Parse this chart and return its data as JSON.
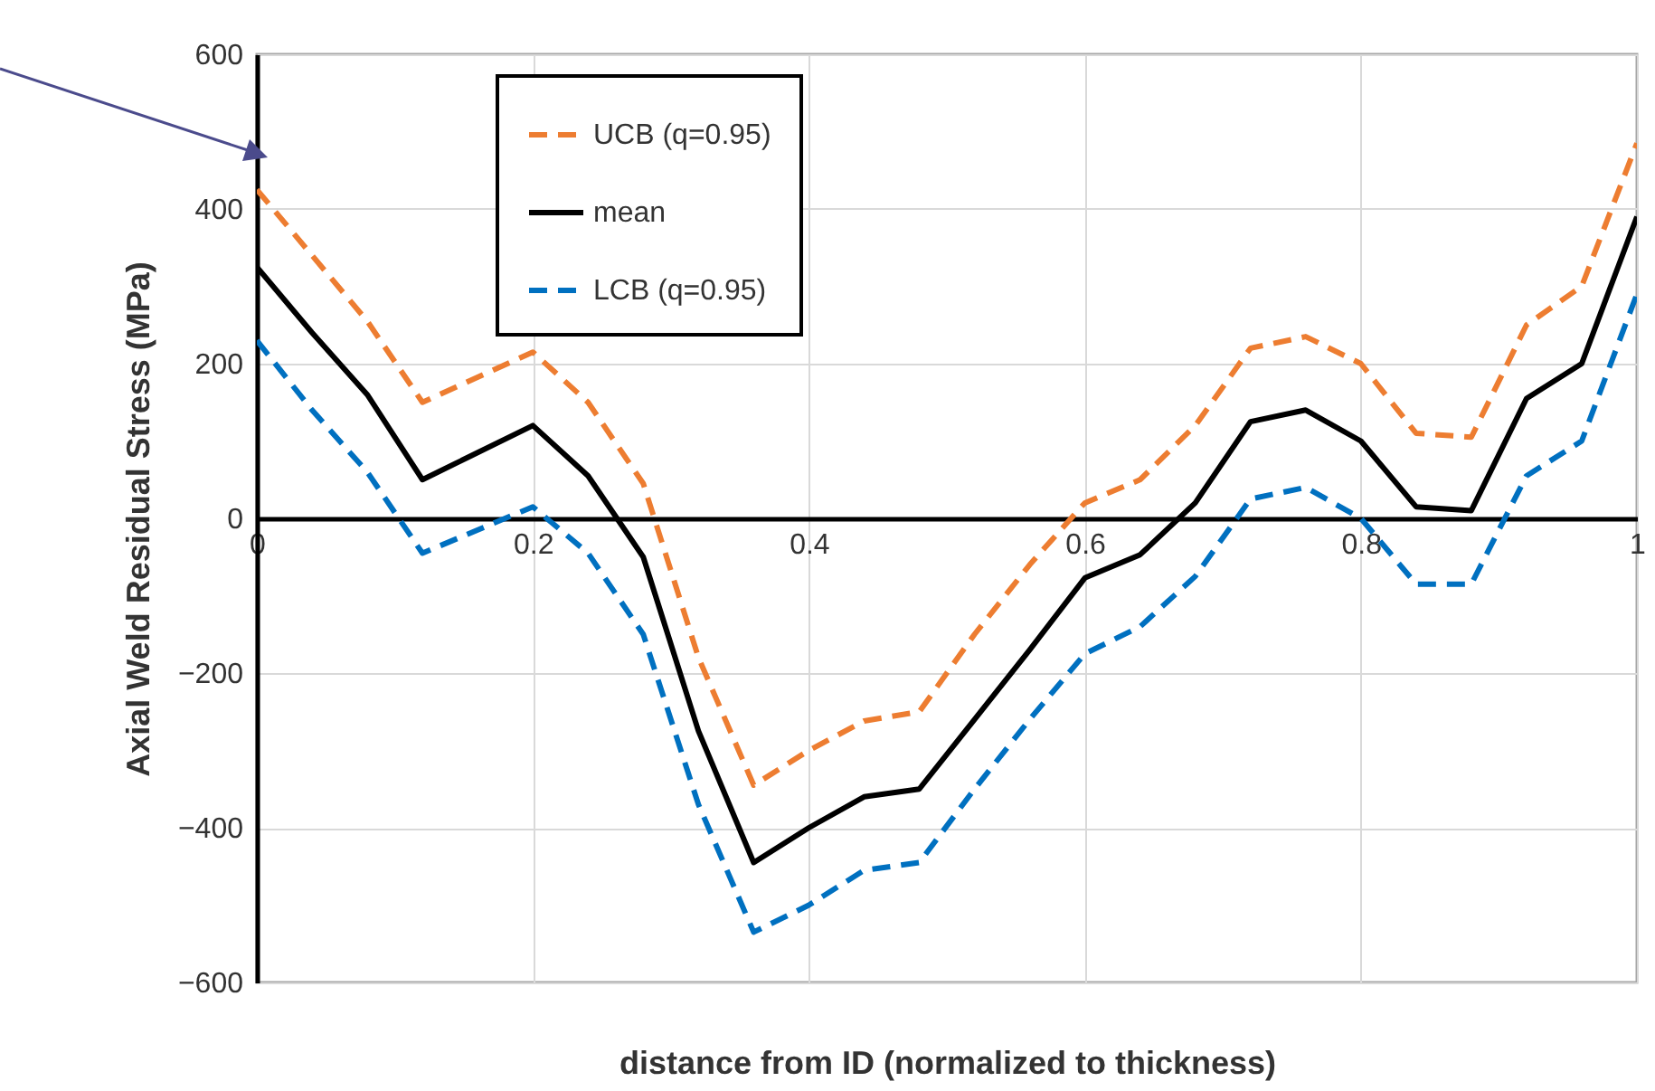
{
  "chart_data": {
    "type": "line",
    "xlabel": "distance from ID (normalized to thickness)",
    "ylabel": "Axial Weld Residual Stress (MPa)",
    "x": [
      0,
      0.04,
      0.08,
      0.12,
      0.2,
      0.24,
      0.28,
      0.32,
      0.36,
      0.4,
      0.44,
      0.48,
      0.52,
      0.56,
      0.6,
      0.64,
      0.68,
      0.72,
      0.76,
      0.8,
      0.84,
      0.88,
      0.92,
      0.96,
      1
    ],
    "series": [
      {
        "name": "UCB (q=0.95)",
        "color": "#ed7d31",
        "line_style": "dashed",
        "values": [
          425,
          340,
          255,
          150,
          215,
          150,
          45,
          -180,
          -345,
          -300,
          -262,
          -250,
          -150,
          -60,
          20,
          50,
          120,
          220,
          235,
          200,
          110,
          105,
          250,
          300,
          485
        ]
      },
      {
        "name": "mean",
        "color": "#000000",
        "line_style": "solid",
        "values": [
          325,
          240,
          160,
          50,
          120,
          55,
          -50,
          -275,
          -445,
          -400,
          -360,
          -350,
          -260,
          -170,
          -77,
          -47,
          20,
          125,
          140,
          100,
          15,
          10,
          155,
          200,
          390
        ]
      },
      {
        "name": "LCB (q=0.95)",
        "color": "#0070c0",
        "line_style": "dashed",
        "values": [
          230,
          140,
          60,
          -45,
          15,
          -45,
          -150,
          -370,
          -535,
          -500,
          -455,
          -445,
          -350,
          -260,
          -175,
          -140,
          -75,
          25,
          40,
          0,
          -85,
          -85,
          55,
          100,
          290
        ]
      }
    ],
    "xlim": [
      0,
      1
    ],
    "xticks": [
      0,
      0.2,
      0.4,
      0.6,
      0.8,
      1
    ],
    "ylim": [
      -600,
      600
    ],
    "yticks": [
      -600,
      -400,
      -200,
      0,
      200,
      400,
      600
    ],
    "grid": true,
    "legend": "top left",
    "marker": "none"
  }
}
